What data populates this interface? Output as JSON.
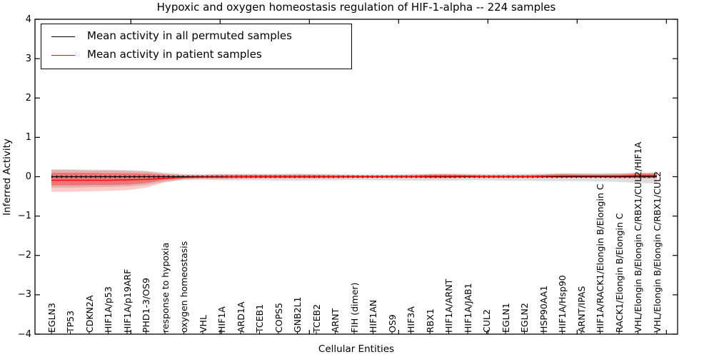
{
  "title": "Hypoxic and oxygen homeostasis regulation of HIF-1-alpha -- 224 samples",
  "axes": {
    "ylabel": "Inferred Activity",
    "xlabel": "Cellular Entities"
  },
  "colors": {
    "permuted_line": "#000000",
    "patient_line": "#ff0000",
    "permuted_band": "#bbbbbb",
    "patient_band": "#ff0000",
    "spine": "#000000"
  },
  "chart_data": {
    "type": "line",
    "title": "Hypoxic and oxygen homeostasis regulation of HIF-1-alpha -- 224 samples",
    "xlabel": "Cellular Entities",
    "ylabel": "Inferred Activity",
    "ylim": [
      -4,
      4
    ],
    "yticks": [
      -4,
      -3,
      -2,
      -1,
      0,
      1,
      2,
      3,
      4
    ],
    "grid": false,
    "legend_position": "upper left",
    "categories": [
      "EGLN3",
      "TP53",
      "CDKN2A",
      "HIF1A/p53",
      "HIF1A/p19ARF",
      "PHD1-3/OS9",
      "response to hypoxia",
      "oxygen homeostasis",
      "VHL",
      "HIF1A",
      "ARD1A",
      "TCEB1",
      "COPS5",
      "GNB2L1",
      "TCEB2",
      "ARNT",
      "FIH (dimer)",
      "HIF1AN",
      "OS9",
      "HIF3A",
      "RBX1",
      "HIF1A/ARNT",
      "HIF1A/JAB1",
      "CUL2",
      "EGLN1",
      "EGLN2",
      "HSP90AA1",
      "HIF1A/Hsp90",
      "ARNT/IPAS",
      "HIF1A/RACK1/Elongin B/Elongin C",
      "RACK1/Elongin B/Elongin C",
      "VHL/Elongin B/Elongin C/RBX1/CUL2/HIF1A",
      "VHL/Elongin B/Elongin C/RBX1/CUL2"
    ],
    "series": [
      {
        "name": "Mean activity in all permuted samples",
        "color": "#000000",
        "values": [
          0,
          0,
          0,
          0,
          0,
          0,
          0,
          0,
          0,
          0,
          0,
          0,
          0,
          0,
          0,
          0,
          0,
          0,
          0,
          0,
          0,
          0,
          0,
          0,
          0,
          0,
          0,
          0,
          0,
          0,
          0,
          0,
          0
        ]
      },
      {
        "name": "Mean activity in patient samples",
        "color": "#ff0000",
        "values": [
          -0.09,
          -0.09,
          -0.09,
          -0.09,
          -0.08,
          -0.07,
          -0.04,
          -0.02,
          -0.01,
          -0.01,
          0,
          0,
          0,
          0,
          0,
          0,
          0,
          0,
          0,
          0,
          0.01,
          0.01,
          0.01,
          0,
          0,
          0,
          0.01,
          0.02,
          0.02,
          0.02,
          0.02,
          0.03,
          0.03
        ]
      }
    ],
    "bands": [
      {
        "name": "permuted-std-band",
        "color": "#bbbbbb",
        "opacity": 0.5,
        "upper": [
          0.19,
          0.19,
          0.18,
          0.18,
          0.17,
          0.15,
          0.1,
          0.07,
          0.06,
          0.07,
          0.07,
          0.07,
          0.07,
          0.08,
          0.07,
          0.07,
          0.06,
          0.06,
          0.06,
          0.07,
          0.07,
          0.07,
          0.07,
          0.07,
          0.07,
          0.07,
          0.08,
          0.08,
          0.08,
          0.09,
          0.09,
          0.1,
          0.1
        ],
        "lower": [
          -0.28,
          -0.28,
          -0.27,
          -0.26,
          -0.25,
          -0.21,
          -0.13,
          -0.09,
          -0.08,
          -0.09,
          -0.09,
          -0.09,
          -0.1,
          -0.1,
          -0.09,
          -0.09,
          -0.08,
          -0.09,
          -0.09,
          -0.1,
          -0.1,
          -0.1,
          -0.09,
          -0.09,
          -0.1,
          -0.1,
          -0.11,
          -0.11,
          -0.11,
          -0.12,
          -0.13,
          -0.16,
          -0.17
        ]
      },
      {
        "name": "patient-outer-band",
        "color": "#ff0000",
        "opacity": 0.2,
        "upper": [
          0.17,
          0.17,
          0.16,
          0.16,
          0.15,
          0.13,
          0.08,
          0.05,
          0.05,
          0.06,
          0.06,
          0.06,
          0.06,
          0.06,
          0.06,
          0.05,
          0.04,
          0.04,
          0.04,
          0.05,
          0.07,
          0.08,
          0.06,
          0.05,
          0.05,
          0.05,
          0.06,
          0.09,
          0.08,
          0.07,
          0.08,
          0.1,
          0.1
        ],
        "lower": [
          -0.38,
          -0.38,
          -0.37,
          -0.36,
          -0.34,
          -0.28,
          -0.14,
          -0.06,
          -0.05,
          -0.06,
          -0.05,
          -0.04,
          -0.04,
          -0.04,
          -0.04,
          -0.04,
          -0.03,
          -0.03,
          -0.03,
          -0.03,
          -0.04,
          -0.04,
          -0.03,
          -0.03,
          -0.03,
          -0.03,
          -0.03,
          -0.03,
          -0.03,
          -0.03,
          -0.04,
          -0.04,
          -0.04
        ]
      },
      {
        "name": "patient-inner-band",
        "color": "#ff0000",
        "opacity": 0.33,
        "upper": [
          0.1,
          0.1,
          0.1,
          0.09,
          0.09,
          0.08,
          0.05,
          0.03,
          0.03,
          0.04,
          0.04,
          0.04,
          0.04,
          0.04,
          0.04,
          0.03,
          0.03,
          0.02,
          0.03,
          0.03,
          0.05,
          0.05,
          0.04,
          0.03,
          0.03,
          0.03,
          0.04,
          0.06,
          0.05,
          0.05,
          0.05,
          0.07,
          0.07
        ],
        "lower": [
          -0.22,
          -0.22,
          -0.21,
          -0.21,
          -0.2,
          -0.16,
          -0.08,
          -0.04,
          -0.03,
          -0.03,
          -0.03,
          -0.03,
          -0.03,
          -0.03,
          -0.03,
          -0.02,
          -0.02,
          -0.02,
          -0.02,
          -0.02,
          -0.03,
          -0.03,
          -0.02,
          -0.02,
          -0.02,
          -0.02,
          -0.02,
          -0.02,
          -0.02,
          -0.02,
          -0.03,
          -0.03,
          -0.03
        ]
      }
    ]
  }
}
